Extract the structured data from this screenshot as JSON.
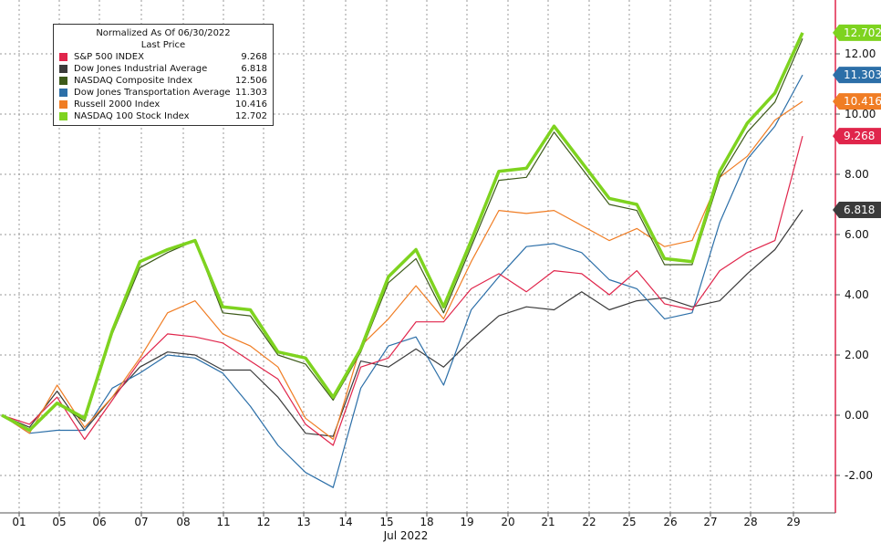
{
  "legend": {
    "title_line1": "Normalized As Of 06/30/2022",
    "title_line2": "Last Price"
  },
  "chart_data": {
    "type": "line",
    "title": "",
    "xlabel": "Jul 2022",
    "ylabel": "",
    "ylim": [
      -3.0,
      13.8
    ],
    "y_ticks": [
      "-2.00",
      "0.00",
      "2.00",
      "4.00",
      "6.00",
      "8.00",
      "10.00",
      "12.00"
    ],
    "y_tick_values": [
      -2,
      0,
      2,
      4,
      6,
      8,
      10,
      12
    ],
    "x_ticks": [
      "01",
      "05",
      "06",
      "07",
      "08",
      "11",
      "12",
      "13",
      "14",
      "15",
      "18",
      "19",
      "20",
      "21",
      "22",
      "25",
      "26",
      "27",
      "28",
      "29"
    ],
    "grid": true,
    "legend_position": "top-left",
    "series": [
      {
        "name": "S&P 500 INDEX",
        "color": "#e0254b",
        "last": "9.268",
        "values": [
          0.0,
          -0.3,
          0.6,
          -0.8,
          0.5,
          1.8,
          2.7,
          2.6,
          2.4,
          1.8,
          1.2,
          -0.3,
          -1.0,
          1.6,
          1.9,
          3.1,
          3.1,
          4.2,
          4.7,
          4.1,
          4.8,
          4.7,
          4.0,
          4.8,
          3.7,
          3.5,
          4.8,
          5.4,
          5.8,
          9.27
        ]
      },
      {
        "name": "Dow Jones Industrial Average",
        "color": "#3b3b3b",
        "last": "6.818",
        "values": [
          0.0,
          -0.4,
          0.8,
          -0.5,
          0.6,
          1.6,
          2.1,
          2.0,
          1.5,
          1.5,
          0.6,
          -0.6,
          -0.7,
          1.8,
          1.6,
          2.2,
          1.6,
          2.5,
          3.3,
          3.6,
          3.5,
          4.1,
          3.5,
          3.8,
          3.9,
          3.6,
          3.8,
          4.7,
          5.5,
          6.82
        ]
      },
      {
        "name": "NASDAQ Composite Index",
        "color": "#3d5a1a",
        "last": "12.506",
        "values": [
          0.0,
          -0.5,
          0.4,
          -0.2,
          2.7,
          4.9,
          5.4,
          5.8,
          3.4,
          3.3,
          2.0,
          1.7,
          0.5,
          2.1,
          4.4,
          5.2,
          3.4,
          5.6,
          7.8,
          7.9,
          9.4,
          8.2,
          7.0,
          6.8,
          5.0,
          5.0,
          7.9,
          9.4,
          10.4,
          12.51
        ]
      },
      {
        "name": "Dow Jones Transportation Average",
        "color": "#2c6fa8",
        "last": "11.303",
        "values": [
          0.0,
          -0.6,
          -0.5,
          -0.5,
          0.9,
          1.4,
          2.0,
          1.9,
          1.4,
          0.3,
          -1.0,
          -1.9,
          -2.4,
          0.9,
          2.3,
          2.6,
          1.0,
          3.5,
          4.6,
          5.6,
          5.7,
          5.4,
          4.5,
          4.2,
          3.2,
          3.4,
          6.4,
          8.5,
          9.6,
          11.3
        ]
      },
      {
        "name": "Russell 2000 Index",
        "color": "#f07d24",
        "last": "10.416",
        "values": [
          0.0,
          -0.6,
          1.0,
          -0.4,
          0.6,
          1.9,
          3.4,
          3.8,
          2.7,
          2.3,
          1.6,
          -0.1,
          -0.8,
          2.3,
          3.2,
          4.3,
          3.2,
          5.1,
          6.8,
          6.7,
          6.8,
          6.3,
          5.8,
          6.2,
          5.6,
          5.8,
          7.9,
          8.6,
          9.8,
          10.42
        ]
      },
      {
        "name": "NASDAQ 100 Stock Index",
        "color": "#7ed31f",
        "last": "12.702",
        "values": [
          0.0,
          -0.5,
          0.4,
          -0.1,
          2.8,
          5.1,
          5.5,
          5.8,
          3.6,
          3.5,
          2.1,
          1.9,
          0.6,
          2.2,
          4.6,
          5.5,
          3.6,
          5.8,
          8.1,
          8.2,
          9.6,
          8.4,
          7.2,
          7.0,
          5.2,
          5.1,
          8.1,
          9.7,
          10.7,
          12.7
        ]
      }
    ]
  }
}
